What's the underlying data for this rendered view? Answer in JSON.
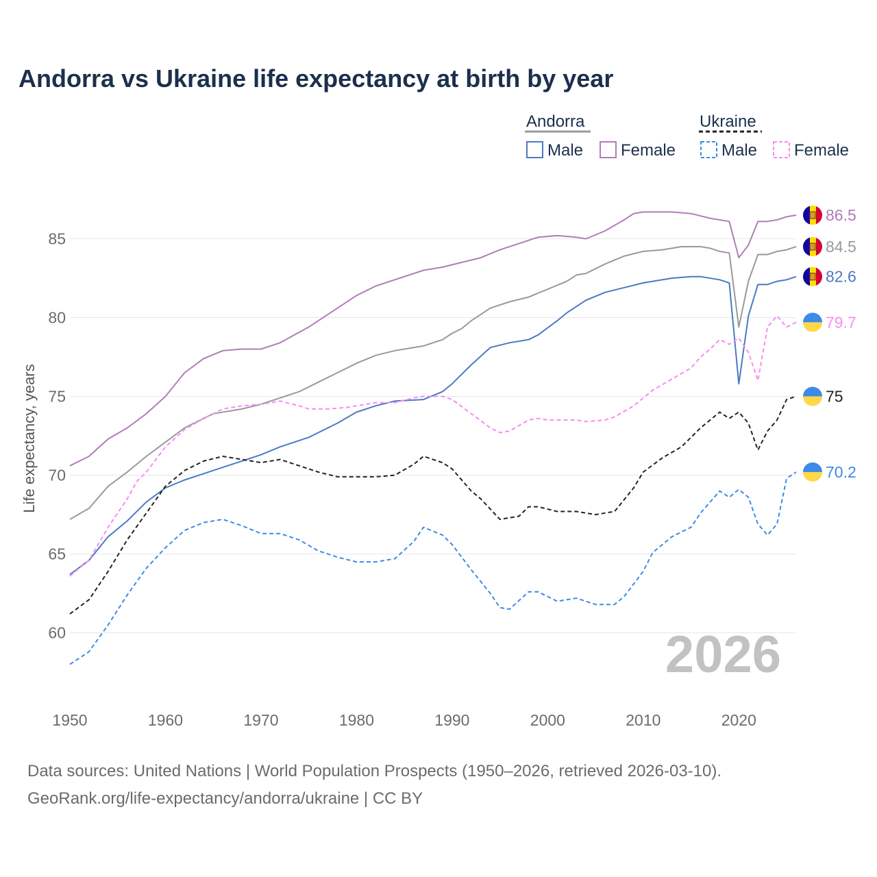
{
  "title": "Andorra vs Ukraine life expectancy at birth by year",
  "source_line1": "Data sources: United Nations | World Population Prospects (1950–2026, retrieved 2026-03-10).",
  "source_line2": "GeoRank.org/life-expectancy/andorra/ukraine | CC BY",
  "legend": {
    "andorra_label": "Andorra",
    "ukraine_label": "Ukraine",
    "male_label": "Male",
    "female_label": "Female"
  },
  "year_watermark": "2026",
  "colors": {
    "andorra_total": "#999999",
    "andorra_male": "#4c78c4",
    "andorra_female": "#b07cb8",
    "ukraine_total": "#222222",
    "ukraine_male": "#3d8ae8",
    "ukraine_female": "#f78cf0",
    "title": "#1c2f4d",
    "grid": "#e6e6e6"
  },
  "chart_data": {
    "type": "line",
    "title": "Andorra vs Ukraine life expectancy at birth by year",
    "xlabel": "",
    "ylabel": "Life expectancy, years",
    "xlim": [
      1950,
      2026
    ],
    "ylim": [
      56.2,
      88.5
    ],
    "xticks": [
      1950,
      1960,
      1970,
      1980,
      1990,
      2000,
      2010,
      2020
    ],
    "yticks": [
      60,
      65,
      70,
      75,
      80,
      85
    ],
    "grid": true,
    "legend_position": "top-right",
    "series": [
      {
        "key": "andorra_female",
        "name": "Andorra Female",
        "country": "andorra",
        "dashed": false,
        "end_label": "86.5",
        "points": [
          [
            1950,
            70.6
          ],
          [
            1952,
            71.2
          ],
          [
            1954,
            72.3
          ],
          [
            1956,
            73.0
          ],
          [
            1958,
            73.9
          ],
          [
            1960,
            75.0
          ],
          [
            1962,
            76.5
          ],
          [
            1964,
            77.4
          ],
          [
            1966,
            77.9
          ],
          [
            1968,
            78.0
          ],
          [
            1970,
            78.0
          ],
          [
            1972,
            78.4
          ],
          [
            1975,
            79.4
          ],
          [
            1978,
            80.6
          ],
          [
            1980,
            81.4
          ],
          [
            1982,
            82.0
          ],
          [
            1985,
            82.6
          ],
          [
            1987,
            83.0
          ],
          [
            1989,
            83.2
          ],
          [
            1991,
            83.5
          ],
          [
            1993,
            83.8
          ],
          [
            1995,
            84.3
          ],
          [
            1997,
            84.7
          ],
          [
            1999,
            85.1
          ],
          [
            2001,
            85.2
          ],
          [
            2003,
            85.1
          ],
          [
            2004,
            85.0
          ],
          [
            2006,
            85.5
          ],
          [
            2008,
            86.2
          ],
          [
            2009,
            86.6
          ],
          [
            2010,
            86.7
          ],
          [
            2013,
            86.7
          ],
          [
            2015,
            86.6
          ],
          [
            2017,
            86.3
          ],
          [
            2019,
            86.1
          ],
          [
            2020,
            83.8
          ],
          [
            2021,
            84.6
          ],
          [
            2022,
            86.1
          ],
          [
            2023,
            86.1
          ],
          [
            2024,
            86.2
          ],
          [
            2025,
            86.4
          ],
          [
            2026,
            86.5
          ]
        ]
      },
      {
        "key": "andorra_total",
        "name": "Andorra",
        "country": "andorra",
        "dashed": false,
        "end_label": "84.5",
        "points": [
          [
            1950,
            67.2
          ],
          [
            1952,
            67.9
          ],
          [
            1954,
            69.3
          ],
          [
            1956,
            70.2
          ],
          [
            1958,
            71.2
          ],
          [
            1960,
            72.1
          ],
          [
            1962,
            73.0
          ],
          [
            1965,
            73.9
          ],
          [
            1968,
            74.2
          ],
          [
            1970,
            74.5
          ],
          [
            1972,
            74.9
          ],
          [
            1974,
            75.3
          ],
          [
            1976,
            75.9
          ],
          [
            1978,
            76.5
          ],
          [
            1980,
            77.1
          ],
          [
            1982,
            77.6
          ],
          [
            1984,
            77.9
          ],
          [
            1987,
            78.2
          ],
          [
            1989,
            78.6
          ],
          [
            1990,
            79.0
          ],
          [
            1991,
            79.3
          ],
          [
            1992,
            79.8
          ],
          [
            1994,
            80.6
          ],
          [
            1996,
            81.0
          ],
          [
            1998,
            81.3
          ],
          [
            2000,
            81.8
          ],
          [
            2002,
            82.3
          ],
          [
            2003,
            82.7
          ],
          [
            2004,
            82.8
          ],
          [
            2006,
            83.4
          ],
          [
            2008,
            83.9
          ],
          [
            2010,
            84.2
          ],
          [
            2012,
            84.3
          ],
          [
            2014,
            84.5
          ],
          [
            2016,
            84.5
          ],
          [
            2017,
            84.4
          ],
          [
            2018,
            84.2
          ],
          [
            2019,
            84.1
          ],
          [
            2020,
            79.4
          ],
          [
            2021,
            82.3
          ],
          [
            2022,
            84.0
          ],
          [
            2023,
            84.0
          ],
          [
            2024,
            84.2
          ],
          [
            2025,
            84.3
          ],
          [
            2026,
            84.5
          ]
        ]
      },
      {
        "key": "andorra_male",
        "name": "Andorra Male",
        "country": "andorra",
        "dashed": false,
        "end_label": "82.6",
        "points": [
          [
            1950,
            63.7
          ],
          [
            1952,
            64.6
          ],
          [
            1954,
            66.1
          ],
          [
            1956,
            67.1
          ],
          [
            1958,
            68.3
          ],
          [
            1960,
            69.2
          ],
          [
            1962,
            69.7
          ],
          [
            1964,
            70.1
          ],
          [
            1966,
            70.5
          ],
          [
            1968,
            70.9
          ],
          [
            1970,
            71.3
          ],
          [
            1972,
            71.8
          ],
          [
            1975,
            72.4
          ],
          [
            1978,
            73.3
          ],
          [
            1980,
            74.0
          ],
          [
            1982,
            74.4
          ],
          [
            1984,
            74.7
          ],
          [
            1987,
            74.8
          ],
          [
            1989,
            75.3
          ],
          [
            1990,
            75.8
          ],
          [
            1992,
            77.0
          ],
          [
            1994,
            78.1
          ],
          [
            1996,
            78.4
          ],
          [
            1998,
            78.6
          ],
          [
            1999,
            78.9
          ],
          [
            2001,
            79.8
          ],
          [
            2002,
            80.3
          ],
          [
            2004,
            81.1
          ],
          [
            2006,
            81.6
          ],
          [
            2008,
            81.9
          ],
          [
            2010,
            82.2
          ],
          [
            2013,
            82.5
          ],
          [
            2015,
            82.6
          ],
          [
            2016,
            82.6
          ],
          [
            2018,
            82.4
          ],
          [
            2019,
            82.2
          ],
          [
            2020,
            75.8
          ],
          [
            2021,
            80.1
          ],
          [
            2022,
            82.1
          ],
          [
            2023,
            82.1
          ],
          [
            2024,
            82.3
          ],
          [
            2025,
            82.4
          ],
          [
            2026,
            82.6
          ]
        ]
      },
      {
        "key": "ukraine_female",
        "name": "Ukraine Female",
        "country": "ukraine",
        "dashed": true,
        "end_label": "79.7",
        "points": [
          [
            1950,
            63.6
          ],
          [
            1952,
            64.6
          ],
          [
            1954,
            66.7
          ],
          [
            1956,
            68.5
          ],
          [
            1957,
            69.6
          ],
          [
            1958,
            70.2
          ],
          [
            1960,
            71.8
          ],
          [
            1962,
            72.9
          ],
          [
            1964,
            73.6
          ],
          [
            1966,
            74.2
          ],
          [
            1968,
            74.4
          ],
          [
            1970,
            74.5
          ],
          [
            1972,
            74.7
          ],
          [
            1974,
            74.4
          ],
          [
            1975,
            74.2
          ],
          [
            1977,
            74.2
          ],
          [
            1979,
            74.3
          ],
          [
            1982,
            74.6
          ],
          [
            1984,
            74.6
          ],
          [
            1986,
            74.9
          ],
          [
            1987,
            75.0
          ],
          [
            1989,
            75.0
          ],
          [
            1990,
            74.8
          ],
          [
            1992,
            73.9
          ],
          [
            1994,
            73.0
          ],
          [
            1995,
            72.7
          ],
          [
            1996,
            72.8
          ],
          [
            1998,
            73.5
          ],
          [
            1999,
            73.6
          ],
          [
            2000,
            73.5
          ],
          [
            2003,
            73.5
          ],
          [
            2004,
            73.4
          ],
          [
            2006,
            73.5
          ],
          [
            2007,
            73.7
          ],
          [
            2009,
            74.4
          ],
          [
            2011,
            75.4
          ],
          [
            2013,
            76.1
          ],
          [
            2015,
            76.8
          ],
          [
            2016,
            77.5
          ],
          [
            2017,
            78.0
          ],
          [
            2018,
            78.6
          ],
          [
            2019,
            78.3
          ],
          [
            2020,
            78.7
          ],
          [
            2021,
            77.8
          ],
          [
            2022,
            76.0
          ],
          [
            2023,
            79.4
          ],
          [
            2024,
            80.1
          ],
          [
            2025,
            79.4
          ],
          [
            2026,
            79.7
          ]
        ]
      },
      {
        "key": "ukraine_total",
        "name": "Ukraine",
        "country": "ukraine",
        "dashed": true,
        "end_label": "75",
        "points": [
          [
            1950,
            61.2
          ],
          [
            1952,
            62.1
          ],
          [
            1954,
            63.9
          ],
          [
            1956,
            65.9
          ],
          [
            1958,
            67.6
          ],
          [
            1960,
            69.3
          ],
          [
            1962,
            70.3
          ],
          [
            1964,
            70.9
          ],
          [
            1966,
            71.2
          ],
          [
            1968,
            71.0
          ],
          [
            1970,
            70.8
          ],
          [
            1972,
            71.0
          ],
          [
            1974,
            70.6
          ],
          [
            1976,
            70.2
          ],
          [
            1978,
            69.9
          ],
          [
            1982,
            69.9
          ],
          [
            1984,
            70.0
          ],
          [
            1986,
            70.7
          ],
          [
            1987,
            71.2
          ],
          [
            1989,
            70.8
          ],
          [
            1990,
            70.4
          ],
          [
            1992,
            69.0
          ],
          [
            1993,
            68.5
          ],
          [
            1995,
            67.2
          ],
          [
            1997,
            67.4
          ],
          [
            1998,
            68.0
          ],
          [
            1999,
            68.0
          ],
          [
            2001,
            67.7
          ],
          [
            2003,
            67.7
          ],
          [
            2005,
            67.5
          ],
          [
            2007,
            67.7
          ],
          [
            2009,
            69.2
          ],
          [
            2010,
            70.2
          ],
          [
            2012,
            71.1
          ],
          [
            2014,
            71.8
          ],
          [
            2016,
            73.0
          ],
          [
            2018,
            74.0
          ],
          [
            2019,
            73.6
          ],
          [
            2020,
            74.0
          ],
          [
            2021,
            73.3
          ],
          [
            2022,
            71.6
          ],
          [
            2023,
            72.8
          ],
          [
            2024,
            73.5
          ],
          [
            2025,
            74.8
          ],
          [
            2026,
            75.0
          ]
        ]
      },
      {
        "key": "ukraine_male",
        "name": "Ukraine Male",
        "country": "ukraine",
        "dashed": true,
        "end_label": "70.2",
        "points": [
          [
            1950,
            58.0
          ],
          [
            1952,
            58.8
          ],
          [
            1954,
            60.5
          ],
          [
            1956,
            62.4
          ],
          [
            1958,
            64.1
          ],
          [
            1960,
            65.4
          ],
          [
            1962,
            66.5
          ],
          [
            1964,
            67.0
          ],
          [
            1966,
            67.2
          ],
          [
            1968,
            66.8
          ],
          [
            1970,
            66.3
          ],
          [
            1972,
            66.3
          ],
          [
            1974,
            65.9
          ],
          [
            1976,
            65.2
          ],
          [
            1978,
            64.8
          ],
          [
            1980,
            64.5
          ],
          [
            1982,
            64.5
          ],
          [
            1984,
            64.7
          ],
          [
            1986,
            65.8
          ],
          [
            1987,
            66.7
          ],
          [
            1989,
            66.2
          ],
          [
            1990,
            65.6
          ],
          [
            1992,
            64.0
          ],
          [
            1994,
            62.5
          ],
          [
            1995,
            61.6
          ],
          [
            1996,
            61.5
          ],
          [
            1998,
            62.6
          ],
          [
            1999,
            62.6
          ],
          [
            2001,
            62.0
          ],
          [
            2003,
            62.2
          ],
          [
            2005,
            61.8
          ],
          [
            2007,
            61.8
          ],
          [
            2008,
            62.3
          ],
          [
            2010,
            63.9
          ],
          [
            2011,
            65.1
          ],
          [
            2013,
            66.1
          ],
          [
            2015,
            66.7
          ],
          [
            2016,
            67.6
          ],
          [
            2018,
            69.0
          ],
          [
            2019,
            68.6
          ],
          [
            2020,
            69.1
          ],
          [
            2021,
            68.6
          ],
          [
            2022,
            66.9
          ],
          [
            2023,
            66.2
          ],
          [
            2024,
            66.9
          ],
          [
            2025,
            69.8
          ],
          [
            2026,
            70.2
          ]
        ]
      }
    ]
  }
}
